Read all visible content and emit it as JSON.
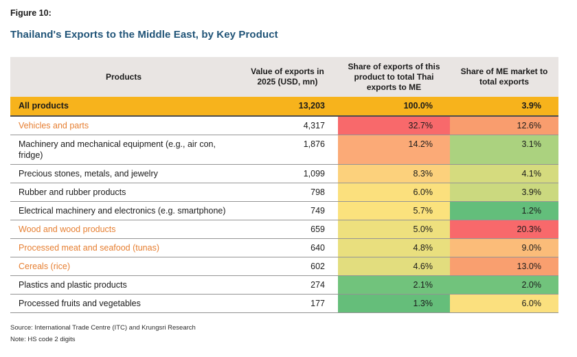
{
  "figure_label": "Figure 10:",
  "title": "Thailand's Exports to the Middle East, by Key Product",
  "colors": {
    "title_text": "#1F5377",
    "accent_row_bg": "#F7B31C",
    "header_bg": "#E9E5E3",
    "highlight_text": "#E67E30",
    "scale_red": "#F8696B",
    "scale_yellow": "#FBE27D",
    "scale_green": "#63BE7B"
  },
  "table": {
    "columns": [
      "Products",
      "Value of exports in 2025 (USD, mn)",
      "Share of exports of this product to total Thai exports to ME",
      "Share of ME market to total exports"
    ],
    "total_row": {
      "product": "All products",
      "value": "13,203",
      "share_thai": "100.0%",
      "share_me": "3.9%"
    },
    "rows": [
      {
        "product": "Vehicles and parts",
        "highlight": true,
        "value": "4,317",
        "share_thai": "32.7%",
        "share_thai_bg": "#F8696B",
        "share_me": "12.6%",
        "share_me_bg": "#F99D6E"
      },
      {
        "product": "Machinery and mechanical equipment (e.g., air con, fridge)",
        "highlight": false,
        "value": "1,876",
        "share_thai": "14.2%",
        "share_thai_bg": "#FBAA77",
        "share_me": "3.1%",
        "share_me_bg": "#ABD27F"
      },
      {
        "product": "Precious stones, metals, and jewelry",
        "highlight": false,
        "value": "1,099",
        "share_thai": "8.3%",
        "share_thai_bg": "#FCD17C",
        "share_me": "4.1%",
        "share_me_bg": "#D5DB7E"
      },
      {
        "product": "Rubber and rubber products",
        "highlight": false,
        "value": "798",
        "share_thai": "6.0%",
        "share_thai_bg": "#FBE07D",
        "share_me": "3.9%",
        "share_me_bg": "#CBD97F"
      },
      {
        "product": "Electrical machinery and electronics (e.g. smartphone)",
        "highlight": false,
        "value": "749",
        "share_thai": "5.7%",
        "share_thai_bg": "#FBE27D",
        "share_me": "1.2%",
        "share_me_bg": "#63BE7B"
      },
      {
        "product": "Wood and wood products",
        "highlight": true,
        "value": "659",
        "share_thai": "5.0%",
        "share_thai_bg": "#EEE07E",
        "share_me": "20.3%",
        "share_me_bg": "#F8696B"
      },
      {
        "product": "Processed meat and seafood (tunas)",
        "highlight": true,
        "value": "640",
        "share_thai": "4.8%",
        "share_thai_bg": "#E9DF7E",
        "share_me": "9.0%",
        "share_me_bg": "#FBBC79"
      },
      {
        "product": "Cereals (rice)",
        "highlight": true,
        "value": "602",
        "share_thai": "4.6%",
        "share_thai_bg": "#E2DD7E",
        "share_me": "13.0%",
        "share_me_bg": "#F99F6F"
      },
      {
        "product": "Plastics and plastic products",
        "highlight": false,
        "value": "274",
        "share_thai": "2.1%",
        "share_thai_bg": "#71C37C",
        "share_me": "2.0%",
        "share_me_bg": "#71C37C"
      },
      {
        "product": "Processed fruits and vegetables",
        "highlight": false,
        "value": "177",
        "share_thai": "1.3%",
        "share_thai_bg": "#65BE7A",
        "share_me": "6.0%",
        "share_me_bg": "#FBE07E"
      }
    ]
  },
  "footer": {
    "source": "Source: International Trade Centre (ITC) and Krungsri Research",
    "note": "Note: HS code 2 digits"
  },
  "chart_data": {
    "type": "table",
    "title": "Thailand's Exports to the Middle East, by Key Product",
    "columns": [
      "Products",
      "Value of exports in 2025 (USD, mn)",
      "Share of exports of this product to total Thai exports to ME (%)",
      "Share of ME market to total exports (%)"
    ],
    "rows": [
      [
        "All products",
        13203,
        100.0,
        3.9
      ],
      [
        "Vehicles and parts",
        4317,
        32.7,
        12.6
      ],
      [
        "Machinery and mechanical equipment (e.g., air con, fridge)",
        1876,
        14.2,
        3.1
      ],
      [
        "Precious stones, metals, and jewelry",
        1099,
        8.3,
        4.1
      ],
      [
        "Rubber and rubber products",
        798,
        6.0,
        3.9
      ],
      [
        "Electrical machinery and electronics (e.g. smartphone)",
        749,
        5.7,
        1.2
      ],
      [
        "Wood and wood products",
        659,
        5.0,
        20.3
      ],
      [
        "Processed meat and seafood (tunas)",
        640,
        4.8,
        9.0
      ],
      [
        "Cereals (rice)",
        602,
        4.6,
        13.0
      ],
      [
        "Plastics and plastic products",
        274,
        2.1,
        2.0
      ],
      [
        "Processed fruits and vegetables",
        177,
        1.3,
        6.0
      ]
    ],
    "legend": "Cell colors follow a red-yellow-green conditional formatting scale (high share = red, low share = green)"
  }
}
